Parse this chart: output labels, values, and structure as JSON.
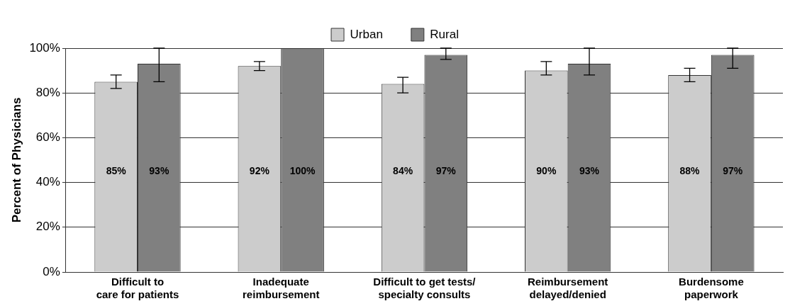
{
  "chart_data": {
    "type": "bar",
    "ylabel": "Percent of Physicians",
    "categories": [
      "Difficult to care for patients",
      "Inadequate reimbursement",
      "Difficult to get tests/ specialty consults",
      "Reimbursement delayed/denied",
      "Burdensome paperwork"
    ],
    "series": [
      {
        "name": "Urban",
        "color": "#cccccc",
        "values": [
          85,
          92,
          84,
          90,
          88
        ],
        "value_labels": [
          "85%",
          "92%",
          "84%",
          "90%",
          "88%"
        ],
        "errors": [
          [
            82,
            88
          ],
          [
            90,
            94
          ],
          [
            80,
            87
          ],
          [
            88,
            94
          ],
          [
            85,
            91
          ]
        ]
      },
      {
        "name": "Rural",
        "color": "#808080",
        "values": [
          93,
          100,
          97,
          93,
          97
        ],
        "value_labels": [
          "93%",
          "100%",
          "97%",
          "93%",
          "97%"
        ],
        "errors": [
          [
            85,
            100
          ],
          null,
          [
            95,
            100
          ],
          [
            88,
            100
          ],
          [
            91,
            100
          ]
        ]
      }
    ],
    "ylim": [
      0,
      100
    ],
    "yticks": [
      {
        "value": 0,
        "label": "0%"
      },
      {
        "value": 20,
        "label": "20%"
      },
      {
        "value": 40,
        "label": "40%"
      },
      {
        "value": 60,
        "label": "60%"
      },
      {
        "value": 80,
        "label": "80%"
      },
      {
        "value": 100,
        "label": "100%"
      }
    ],
    "grid": "y",
    "legend": "top"
  }
}
